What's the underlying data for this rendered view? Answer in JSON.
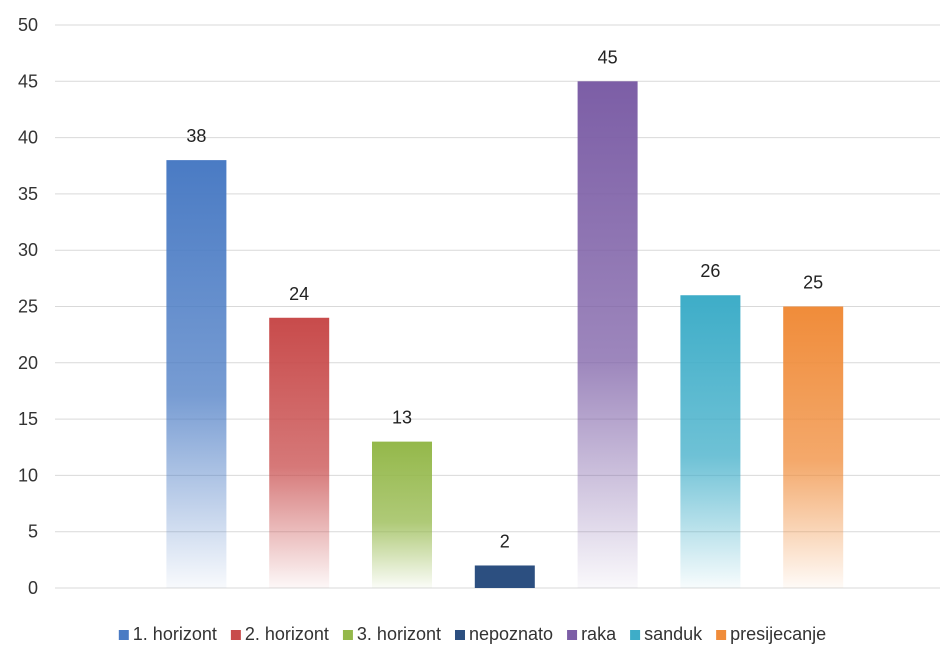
{
  "chart_data": {
    "type": "bar",
    "title": "",
    "xlabel": "",
    "ylabel": "",
    "ylim": [
      0,
      50
    ],
    "yticks": [
      0,
      5,
      10,
      15,
      20,
      25,
      30,
      35,
      40,
      45,
      50
    ],
    "grid": "horizontal",
    "legend_position": "bottom",
    "series": [
      {
        "name": "1. horizont",
        "value": 38,
        "color": "#4a7bc4"
      },
      {
        "name": "2. horizont",
        "value": 24,
        "color": "#c84b4b"
      },
      {
        "name": "3. horizont",
        "value": 13,
        "color": "#94b84a"
      },
      {
        "name": "nepoznato",
        "value": 2,
        "color": "#2c4f80"
      },
      {
        "name": "raka",
        "value": 45,
        "color": "#7c5ea6"
      },
      {
        "name": "sanduk",
        "value": 26,
        "color": "#3eadc8"
      },
      {
        "name": "presijecanje",
        "value": 25,
        "color": "#f08c3a"
      }
    ]
  }
}
